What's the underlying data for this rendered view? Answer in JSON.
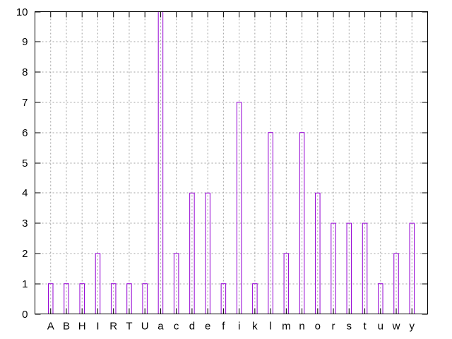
{
  "chart_data": {
    "type": "bar",
    "categories": [
      "A",
      "B",
      "H",
      "I",
      "R",
      "T",
      "U",
      "a",
      "c",
      "d",
      "e",
      "f",
      "i",
      "k",
      "l",
      "m",
      "n",
      "o",
      "r",
      "s",
      "t",
      "u",
      "w",
      "y"
    ],
    "values": [
      1,
      1,
      1,
      2,
      1,
      1,
      1,
      10,
      2,
      4,
      4,
      1,
      7,
      1,
      6,
      2,
      6,
      4,
      3,
      3,
      3,
      1,
      2,
      3
    ],
    "ylim": [
      0,
      10
    ],
    "yticks": [
      0,
      1,
      2,
      3,
      4,
      5,
      6,
      7,
      8,
      9,
      10
    ],
    "grid": true,
    "title": "",
    "xlabel": "",
    "ylabel": "",
    "bar_color": "#9400d3"
  }
}
